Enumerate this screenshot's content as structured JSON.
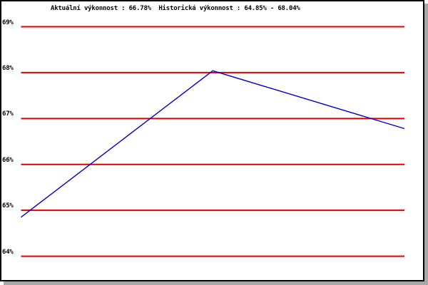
{
  "header": {
    "title": "Aktuální výkonnost : 66.78%  Historická výkonnost : 64.85% - 68.04%",
    "current_performance_label": "Aktuální výkonnost",
    "current_performance_value": "66.78%",
    "historical_performance_label": "Historická výkonnost",
    "historical_performance_range": "64.85% - 68.04%"
  },
  "colors": {
    "grid": "#e00000",
    "line": "#0000cc",
    "border": "#000000",
    "shadow": "#a8a8a8",
    "background": "#ffffff",
    "text": "#000000"
  },
  "chart_data": {
    "type": "line",
    "title": "Aktuální výkonnost : 66.78%  Historická výkonnost : 64.85% - 68.04%",
    "values": [
      64.85,
      68.04,
      66.78
    ],
    "x": [
      0,
      1,
      2
    ],
    "xlabel": "",
    "ylabel": "",
    "ylim": [
      63.5,
      69.5
    ],
    "y_gridlines": [
      69,
      68,
      67,
      66,
      65,
      64
    ],
    "y_tick_labels": [
      "69%",
      "68%",
      "67%",
      "66%",
      "65%",
      "64%"
    ],
    "grid": "on",
    "legend_position": "none",
    "grid_color": "#e00000",
    "line_color": "#0000cc"
  }
}
